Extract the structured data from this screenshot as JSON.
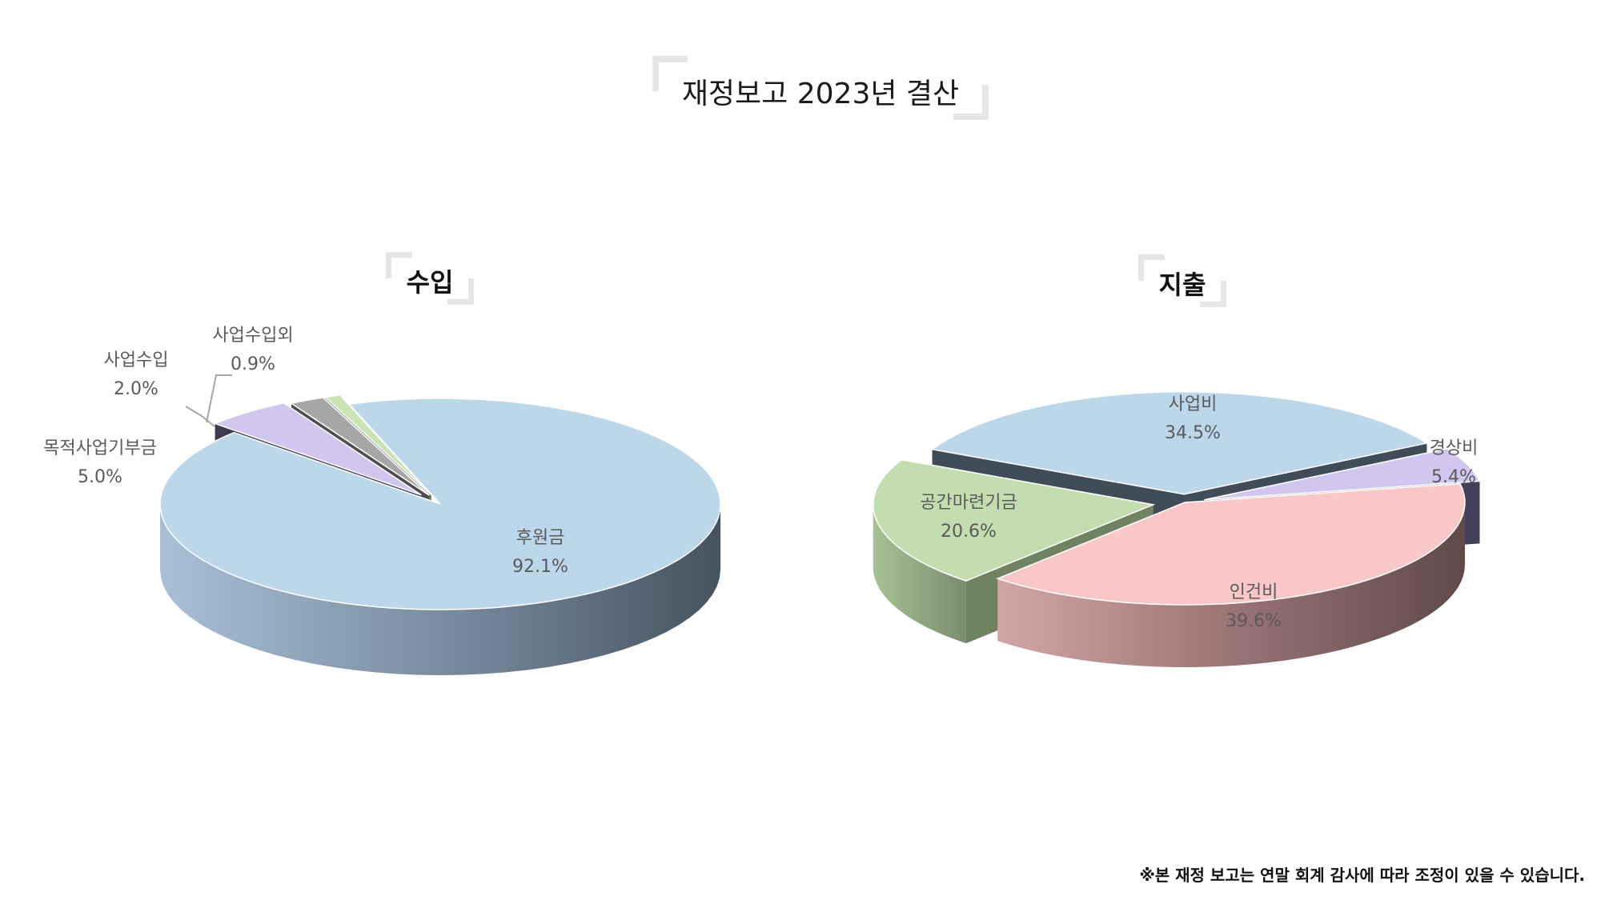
{
  "title": "재정보고 2023년  결산",
  "footnote": "※본 재정 보고는 연말 회계 감사에 따라 조정이 있을 수 있습니다.",
  "chart_data": [
    {
      "type": "pie",
      "title": "수입",
      "slices": [
        {
          "label": "후원금",
          "value": 92.1,
          "display": "92.1%",
          "color": "#bcd6ea"
        },
        {
          "label": "목적사업기부금",
          "value": 5.0,
          "display": "5.0%",
          "color": "#d0c6f0"
        },
        {
          "label": "사업수입",
          "value": 2.0,
          "display": "2.0%",
          "color": "#a6a6a6"
        },
        {
          "label": "사업수입외",
          "value": 0.9,
          "display": "0.9%",
          "color": "#c9e2b6"
        }
      ]
    },
    {
      "type": "pie",
      "title": "지출",
      "slices": [
        {
          "label": "사업비",
          "value": 34.5,
          "display": "34.5%",
          "color": "#bcd6ea"
        },
        {
          "label": "경상비",
          "value": 5.4,
          "display": "5.4%",
          "color": "#d0c6f0"
        },
        {
          "label": "인건비",
          "value": 39.6,
          "display": "39.6%",
          "color": "#f9c7c7"
        },
        {
          "label": "공간마련기금",
          "value": 20.6,
          "display": "20.6%",
          "color": "#c3ddb0"
        }
      ]
    }
  ]
}
